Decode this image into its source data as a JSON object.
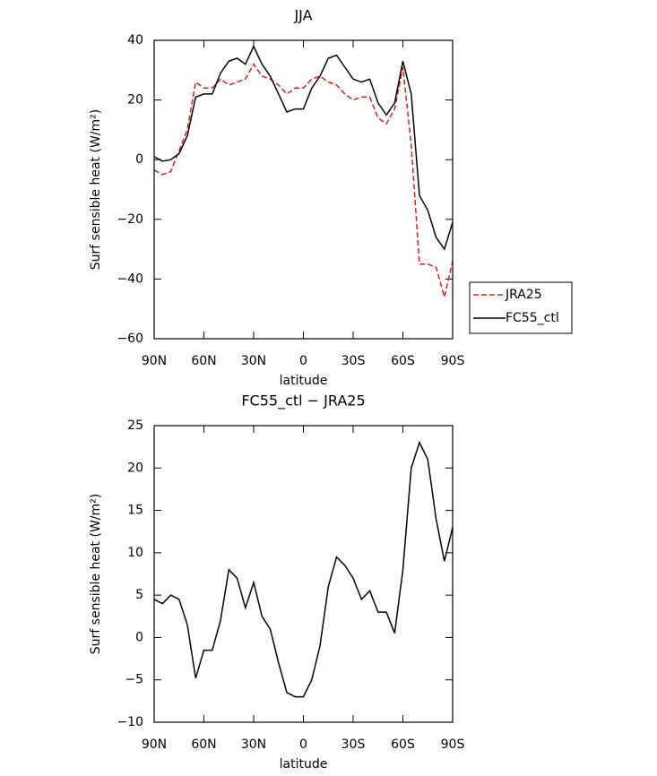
{
  "chart_data": [
    {
      "type": "line",
      "title": "JJA",
      "x_label": "latitude",
      "y_label": "Surf sensible heat (W/m²)",
      "x": [
        90,
        85,
        80,
        75,
        70,
        65,
        60,
        55,
        50,
        45,
        40,
        35,
        30,
        25,
        20,
        15,
        10,
        5,
        0,
        -5,
        -10,
        -15,
        -20,
        -25,
        -30,
        -35,
        -40,
        -45,
        -50,
        -55,
        -60,
        -65,
        -70,
        -75,
        -80,
        -85,
        -90
      ],
      "series": [
        {
          "name": "JRA25",
          "color": "#e41a1c",
          "dash": true,
          "values": [
            -3.5,
            -5,
            -4,
            3,
            10,
            26,
            24,
            24,
            27,
            25,
            26,
            27,
            32,
            28,
            27,
            25,
            22,
            24,
            24,
            27,
            28,
            26,
            25,
            22,
            20,
            21,
            21,
            14,
            12,
            17,
            31,
            5,
            -35,
            -35,
            -36,
            -46,
            -34
          ]
        },
        {
          "name": "FC55_ctl",
          "color": "#000000",
          "dash": false,
          "values": [
            1,
            -0.5,
            0,
            2,
            8,
            21,
            22,
            22,
            29,
            33,
            34,
            32,
            38,
            32,
            28,
            22,
            16,
            17,
            17,
            24,
            28,
            34,
            35,
            31,
            27,
            26,
            27,
            19,
            15,
            19,
            33,
            22,
            -12,
            -17,
            -26,
            -30,
            -21
          ]
        }
      ],
      "xlim": [
        90,
        -90
      ],
      "xticks": [
        {
          "value": 90,
          "label": "90N"
        },
        {
          "value": 60,
          "label": "60N"
        },
        {
          "value": 30,
          "label": "30N"
        },
        0,
        {
          "value": -30,
          "label": "30S"
        },
        {
          "value": -60,
          "label": "60S"
        },
        {
          "value": -90,
          "label": "90S"
        }
      ],
      "ylim": [
        -60,
        40
      ],
      "yticks": [
        {
          "value": -60,
          "label": "−60"
        },
        {
          "value": -40,
          "label": "−40"
        },
        {
          "value": -20,
          "label": "−20"
        },
        0,
        20,
        40
      ],
      "legend": "outside-right"
    },
    {
      "type": "line",
      "title": "FC55_ctl − JRA25",
      "x_label": "latitude",
      "y_label": "Surf sensible heat (W/m²)",
      "x": [
        90,
        85,
        80,
        75,
        70,
        65,
        60,
        55,
        50,
        45,
        40,
        35,
        30,
        25,
        20,
        15,
        10,
        5,
        0,
        -5,
        -10,
        -15,
        -20,
        -25,
        -30,
        -35,
        -40,
        -45,
        -50,
        -55,
        -60,
        -65,
        -70,
        -75,
        -80,
        -85,
        -90
      ],
      "series": [
        {
          "color": "#000000",
          "dash": false,
          "values": [
            4.5,
            4,
            5,
            4.5,
            1.5,
            -4.8,
            -1.5,
            -1.5,
            2,
            8,
            7,
            3.5,
            6.5,
            2.5,
            1,
            -3,
            -6.5,
            -7,
            -7,
            -5,
            -1,
            6,
            9.5,
            8.5,
            7,
            4.5,
            5.5,
            3,
            3,
            0.5,
            8,
            20,
            23,
            21,
            14,
            9,
            13
          ]
        }
      ],
      "xlim": [
        90,
        -90
      ],
      "xticks": [
        {
          "value": 90,
          "label": "90N"
        },
        {
          "value": 60,
          "label": "60N"
        },
        {
          "value": 30,
          "label": "30N"
        },
        0,
        {
          "value": -30,
          "label": "30S"
        },
        {
          "value": -60,
          "label": "60S"
        },
        {
          "value": -90,
          "label": "90S"
        }
      ],
      "ylim": [
        -10,
        25
      ],
      "yticks": [
        {
          "value": -10,
          "label": "−10"
        },
        {
          "value": -5,
          "label": "−5"
        },
        0,
        5,
        10,
        15,
        20,
        25
      ]
    }
  ]
}
